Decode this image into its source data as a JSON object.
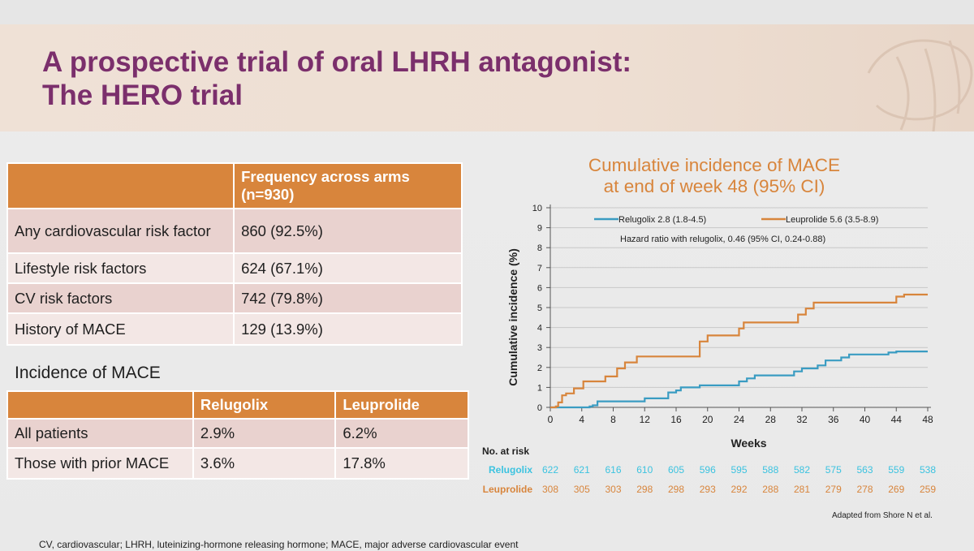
{
  "slide": {
    "title_line1": "A prospective trial of oral LHRH antagonist:",
    "title_line2": "The HERO trial",
    "footnote": "CV, cardiovascular; LHRH, luteinizing-hormone releasing hormone; MACE, major adverse cardiovascular event",
    "credit": "Adapted from Shore N et al."
  },
  "colors": {
    "title": "#7b2f6c",
    "header_bg": "#d8853c",
    "relugolix": "#3a9cc2",
    "leuprolide": "#d8853c"
  },
  "risk_table": {
    "header_blank": "",
    "header_value_line1": "Frequency across arms",
    "header_value_line2": "(n=930)",
    "rows": [
      {
        "label": "Any cardiovascular risk factor",
        "value": "860 (92.5%)"
      },
      {
        "label": "Lifestyle risk factors",
        "value": "624 (67.1%)"
      },
      {
        "label": "CV risk factors",
        "value": "742 (79.8%)"
      },
      {
        "label": "History of MACE",
        "value": "129 (13.9%)"
      }
    ]
  },
  "mace_section": {
    "title": "Incidence of MACE",
    "headers": [
      "",
      "Relugolix",
      "Leuprolide"
    ],
    "rows": [
      {
        "label": "All patients",
        "relugolix": "2.9%",
        "leuprolide": "6.2%"
      },
      {
        "label": "Those with prior MACE",
        "relugolix": "3.6%",
        "leuprolide": "17.8%"
      }
    ]
  },
  "chart_data": {
    "type": "line",
    "title_line1": "Cumulative incidence of MACE",
    "title_line2": "at end of week 48 (95% CI)",
    "xlabel": "Weeks",
    "ylabel": "Cumulative incidence (%)",
    "xlim": [
      0,
      48
    ],
    "ylim": [
      0,
      10
    ],
    "xticks": [
      0,
      4,
      8,
      12,
      16,
      20,
      24,
      28,
      32,
      36,
      40,
      44,
      48
    ],
    "yticks": [
      0,
      1,
      2,
      3,
      4,
      5,
      6,
      7,
      8,
      9,
      10
    ],
    "grid": "horizontal",
    "annotation": "Hazard ratio with relugolix, 0.46 (95% CI, 0.24-0.88)",
    "series": [
      {
        "name": "Relugolix",
        "legend": "Relugolix 2.8 (1.8-4.5)",
        "color": "#3a9cc2",
        "x": [
          0,
          5.0,
          5.0,
          5.4,
          5.4,
          6.0,
          6.0,
          12.0,
          12.0,
          15.0,
          15.0,
          16.0,
          16.0,
          16.6,
          16.6,
          19.0,
          19.0,
          24.0,
          24.0,
          25.0,
          25.0,
          26.0,
          26.0,
          31.0,
          31.0,
          32.0,
          32.0,
          34.0,
          34.0,
          35.0,
          35.0,
          37.0,
          37.0,
          38.0,
          38.0,
          43.0,
          43.0,
          44.0,
          44.0,
          48.0
        ],
        "y": [
          0,
          0,
          0.05,
          0.05,
          0.1,
          0.1,
          0.3,
          0.3,
          0.45,
          0.45,
          0.75,
          0.75,
          0.85,
          0.85,
          1.0,
          1.0,
          1.1,
          1.1,
          1.3,
          1.3,
          1.45,
          1.45,
          1.6,
          1.6,
          1.8,
          1.8,
          1.95,
          1.95,
          2.1,
          2.1,
          2.35,
          2.35,
          2.5,
          2.5,
          2.65,
          2.65,
          2.75,
          2.75,
          2.8,
          2.8
        ]
      },
      {
        "name": "Leuprolide",
        "legend": "Leuprolide 5.6 (3.5-8.9)",
        "color": "#d8853c",
        "x": [
          0,
          0.7,
          0.7,
          1.0,
          1.0,
          1.5,
          1.5,
          2.0,
          2.0,
          3.0,
          3.0,
          4.2,
          4.2,
          7.0,
          7.0,
          8.5,
          8.5,
          9.5,
          9.5,
          11.0,
          11.0,
          19.0,
          19.0,
          20.0,
          20.0,
          24.0,
          24.0,
          24.6,
          24.6,
          31.5,
          31.5,
          32.5,
          32.5,
          33.5,
          33.5,
          44.0,
          44.0,
          45.0,
          45.0,
          48.0
        ],
        "y": [
          0,
          0,
          0.05,
          0.05,
          0.25,
          0.25,
          0.6,
          0.6,
          0.7,
          0.7,
          0.95,
          0.95,
          1.3,
          1.3,
          1.55,
          1.55,
          1.95,
          1.95,
          2.25,
          2.25,
          2.55,
          2.55,
          3.3,
          3.3,
          3.6,
          3.6,
          3.95,
          3.95,
          4.25,
          4.25,
          4.65,
          4.65,
          4.95,
          4.95,
          5.25,
          5.25,
          5.55,
          5.55,
          5.65,
          5.65
        ]
      }
    ],
    "at_risk": {
      "title": "No. at risk",
      "rows": [
        {
          "name": "Relugolix",
          "color": "#3cc3e0",
          "values": [
            622,
            621,
            616,
            610,
            605,
            596,
            595,
            588,
            582,
            575,
            563,
            559,
            538
          ]
        },
        {
          "name": "Leuprolide",
          "color": "#d8853c",
          "values": [
            308,
            305,
            303,
            298,
            298,
            293,
            292,
            288,
            281,
            279,
            278,
            269,
            259
          ]
        }
      ]
    }
  }
}
